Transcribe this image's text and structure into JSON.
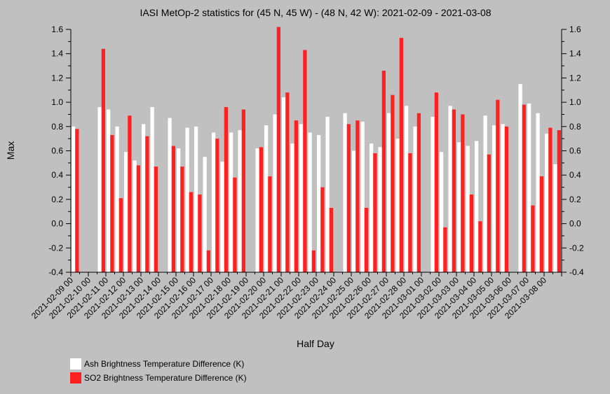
{
  "chart_data": {
    "type": "bar",
    "title": "IASI MetOp-2 statistics for (45 N, 45 W) - (48 N, 42 W): 2021-02-09 - 2021-03-08",
    "xlabel": "Half Day",
    "ylabel": "Max",
    "ylim": [
      -0.4,
      1.6
    ],
    "yticks": [
      -0.4,
      -0.2,
      0.0,
      0.2,
      0.4,
      0.6,
      0.8,
      1.0,
      1.2,
      1.4,
      1.6
    ],
    "ytick_labels": [
      "-0.4",
      "-0.2",
      "0.0",
      "0.2",
      "0.4",
      "0.6",
      "0.8",
      "1.0",
      "1.2",
      "1.4",
      "1.6"
    ],
    "grid": false,
    "legend_position": "bottom-left",
    "xtick_labels": [
      "2021-02-09 00",
      "2021-02-10 00",
      "2021-02-11 00",
      "2021-02-12 00",
      "2021-02-13 00",
      "2021-02-14 00",
      "2021-02-15 00",
      "2021-02-16 00",
      "2021-02-17 00",
      "2021-02-18 00",
      "2021-02-19 00",
      "2021-02-20 00",
      "2021-02-21 00",
      "2021-02-22 00",
      "2021-02-23 00",
      "2021-02-24 00",
      "2021-02-25 00",
      "2021-02-26 00",
      "2021-02-27 00",
      "2021-02-28 00",
      "2021-03-01 00",
      "2021-03-02 00",
      "2021-03-03 00",
      "2021-03-04 00",
      "2021-03-05 00",
      "2021-03-06 00",
      "2021-03-07 00",
      "2021-03-08 00"
    ],
    "series": [
      {
        "name": "Ash Brightness Temperature Difference (K)",
        "color": "#ffffff",
        "values": [
          0.8,
          null,
          null,
          0.96,
          0.94,
          0.8,
          0.59,
          0.52,
          0.82,
          0.96,
          null,
          0.87,
          0.62,
          0.79,
          0.8,
          0.55,
          0.75,
          0.51,
          0.75,
          0.77,
          null,
          0.62,
          0.81,
          0.9,
          1.04,
          0.66,
          0.82,
          0.75,
          0.73,
          0.88,
          null,
          0.91,
          0.6,
          0.84,
          0.66,
          0.63,
          0.91,
          0.7,
          0.97,
          0.8,
          null,
          0.88,
          0.59,
          0.97,
          0.67,
          0.64,
          0.68,
          0.89,
          0.81,
          0.82,
          null,
          1.15,
          0.99,
          0.91,
          0.74,
          0.49
        ]
      },
      {
        "name": "SO2 Brightness Temperature Difference (K)",
        "color": "#ff2020",
        "values": [
          0.78,
          null,
          null,
          1.44,
          0.73,
          0.21,
          0.89,
          0.48,
          0.72,
          0.47,
          null,
          0.64,
          0.47,
          0.26,
          0.24,
          -0.22,
          0.7,
          0.96,
          0.38,
          0.94,
          null,
          0.63,
          0.39,
          1.62,
          1.08,
          0.85,
          1.43,
          -0.22,
          0.3,
          0.13,
          null,
          0.82,
          0.85,
          0.13,
          0.58,
          1.26,
          1.06,
          1.53,
          0.58,
          0.91,
          null,
          1.08,
          -0.03,
          0.94,
          0.9,
          0.24,
          0.02,
          0.57,
          1.02,
          0.8,
          null,
          0.98,
          0.15,
          0.39,
          0.79,
          0.77
        ]
      }
    ]
  }
}
